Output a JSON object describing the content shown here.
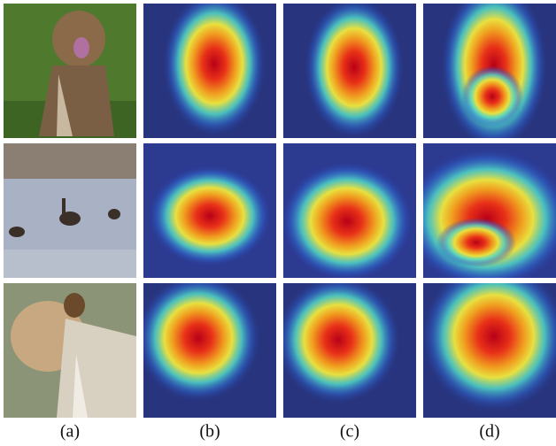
{
  "figure": {
    "column_labels": [
      "(a)",
      "(b)",
      "(c)",
      "(d)"
    ]
  }
}
